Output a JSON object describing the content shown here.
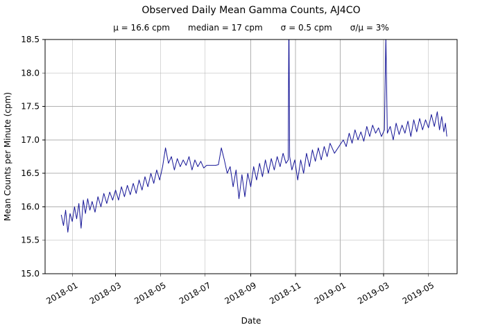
{
  "chart_data": {
    "type": "line",
    "title": "Observed Daily Mean Gamma Counts, AJ4CO",
    "stats": [
      "μ = 16.6 cpm",
      "median = 17 cpm",
      "σ = 0.5 cpm",
      "σ/μ = 3%"
    ],
    "xlabel": "Date",
    "ylabel": "Mean Counts per Minute (cpm)",
    "grid": true,
    "legend": "none",
    "line_color": "#141496",
    "grid_color": "#b0b0b0",
    "ylim": [
      15.0,
      18.5
    ],
    "xlim_days": [
      -37,
      524
    ],
    "x_epoch": "days relative to 2018-01-01",
    "yticks": [
      {
        "value": 15.0,
        "label": "15.0"
      },
      {
        "value": 15.5,
        "label": "15.5"
      },
      {
        "value": 16.0,
        "label": "16.0"
      },
      {
        "value": 16.5,
        "label": "16.5"
      },
      {
        "value": 17.0,
        "label": "17.0"
      },
      {
        "value": 17.5,
        "label": "17.5"
      },
      {
        "value": 18.0,
        "label": "18.0"
      },
      {
        "value": 18.5,
        "label": "18.5"
      }
    ],
    "xticks": [
      {
        "day": 0,
        "label": "2018-01"
      },
      {
        "day": 59,
        "label": "2018-03"
      },
      {
        "day": 120,
        "label": "2018-05"
      },
      {
        "day": 181,
        "label": "2018-07"
      },
      {
        "day": 243,
        "label": "2018-09"
      },
      {
        "day": 304,
        "label": "2018-11"
      },
      {
        "day": 365,
        "label": "2019-01"
      },
      {
        "day": 424,
        "label": "2019-03"
      },
      {
        "day": 485,
        "label": "2019-05"
      }
    ],
    "series": [
      {
        "points": [
          [
            -15,
            15.88
          ],
          [
            -12,
            15.72
          ],
          [
            -9,
            15.95
          ],
          [
            -6,
            15.62
          ],
          [
            -3,
            15.9
          ],
          [
            0,
            15.78
          ],
          [
            3,
            16.0
          ],
          [
            6,
            15.82
          ],
          [
            9,
            16.05
          ],
          [
            12,
            15.68
          ],
          [
            15,
            16.1
          ],
          [
            18,
            15.9
          ],
          [
            21,
            16.12
          ],
          [
            24,
            15.95
          ],
          [
            27,
            16.08
          ],
          [
            31,
            15.92
          ],
          [
            35,
            16.15
          ],
          [
            39,
            16.0
          ],
          [
            43,
            16.2
          ],
          [
            47,
            16.05
          ],
          [
            51,
            16.22
          ],
          [
            55,
            16.1
          ],
          [
            59,
            16.25
          ],
          [
            63,
            16.1
          ],
          [
            67,
            16.3
          ],
          [
            71,
            16.15
          ],
          [
            75,
            16.32
          ],
          [
            79,
            16.18
          ],
          [
            83,
            16.35
          ],
          [
            87,
            16.2
          ],
          [
            91,
            16.4
          ],
          [
            95,
            16.25
          ],
          [
            99,
            16.45
          ],
          [
            103,
            16.3
          ],
          [
            107,
            16.5
          ],
          [
            111,
            16.35
          ],
          [
            115,
            16.55
          ],
          [
            119,
            16.4
          ],
          [
            123,
            16.6
          ],
          [
            127,
            16.88
          ],
          [
            131,
            16.65
          ],
          [
            135,
            16.75
          ],
          [
            139,
            16.55
          ],
          [
            143,
            16.72
          ],
          [
            147,
            16.6
          ],
          [
            151,
            16.7
          ],
          [
            155,
            16.62
          ],
          [
            159,
            16.75
          ],
          [
            163,
            16.55
          ],
          [
            167,
            16.7
          ],
          [
            171,
            16.6
          ],
          [
            175,
            16.68
          ],
          [
            179,
            16.58
          ],
          [
            183,
            16.62
          ],
          [
            187,
            16.62
          ],
          [
            191,
            16.62
          ],
          [
            195,
            16.62
          ],
          [
            199,
            16.63
          ],
          [
            203,
            16.88
          ],
          [
            207,
            16.7
          ],
          [
            211,
            16.5
          ],
          [
            215,
            16.6
          ],
          [
            219,
            16.3
          ],
          [
            223,
            16.55
          ],
          [
            227,
            16.12
          ],
          [
            231,
            16.48
          ],
          [
            235,
            16.15
          ],
          [
            239,
            16.5
          ],
          [
            243,
            16.3
          ],
          [
            247,
            16.6
          ],
          [
            251,
            16.4
          ],
          [
            255,
            16.65
          ],
          [
            259,
            16.45
          ],
          [
            263,
            16.7
          ],
          [
            267,
            16.5
          ],
          [
            271,
            16.72
          ],
          [
            275,
            16.55
          ],
          [
            279,
            16.75
          ],
          [
            283,
            16.6
          ],
          [
            287,
            16.8
          ],
          [
            291,
            16.65
          ],
          [
            294,
            16.7
          ],
          [
            295,
            18.9
          ],
          [
            296,
            16.75
          ],
          [
            299,
            16.55
          ],
          [
            303,
            16.7
          ],
          [
            307,
            16.4
          ],
          [
            311,
            16.7
          ],
          [
            315,
            16.5
          ],
          [
            319,
            16.8
          ],
          [
            323,
            16.6
          ],
          [
            327,
            16.85
          ],
          [
            331,
            16.68
          ],
          [
            335,
            16.88
          ],
          [
            339,
            16.7
          ],
          [
            343,
            16.9
          ],
          [
            347,
            16.75
          ],
          [
            351,
            16.95
          ],
          [
            357,
            16.8
          ],
          [
            369,
            17.0
          ],
          [
            373,
            16.9
          ],
          [
            377,
            17.1
          ],
          [
            381,
            16.95
          ],
          [
            385,
            17.15
          ],
          [
            389,
            17.0
          ],
          [
            393,
            17.12
          ],
          [
            397,
            16.98
          ],
          [
            401,
            17.2
          ],
          [
            405,
            17.05
          ],
          [
            409,
            17.22
          ],
          [
            413,
            17.1
          ],
          [
            417,
            17.18
          ],
          [
            421,
            17.05
          ],
          [
            425,
            17.15
          ],
          [
            427,
            18.55
          ],
          [
            429,
            17.1
          ],
          [
            433,
            17.2
          ],
          [
            437,
            17.0
          ],
          [
            441,
            17.25
          ],
          [
            445,
            17.08
          ],
          [
            449,
            17.22
          ],
          [
            453,
            17.1
          ],
          [
            457,
            17.28
          ],
          [
            461,
            17.05
          ],
          [
            465,
            17.3
          ],
          [
            469,
            17.12
          ],
          [
            473,
            17.32
          ],
          [
            477,
            17.15
          ],
          [
            481,
            17.3
          ],
          [
            485,
            17.18
          ],
          [
            489,
            17.38
          ],
          [
            493,
            17.2
          ],
          [
            497,
            17.42
          ],
          [
            500,
            17.15
          ],
          [
            503,
            17.35
          ],
          [
            506,
            17.12
          ],
          [
            508,
            17.25
          ],
          [
            510,
            17.05
          ]
        ]
      }
    ]
  }
}
